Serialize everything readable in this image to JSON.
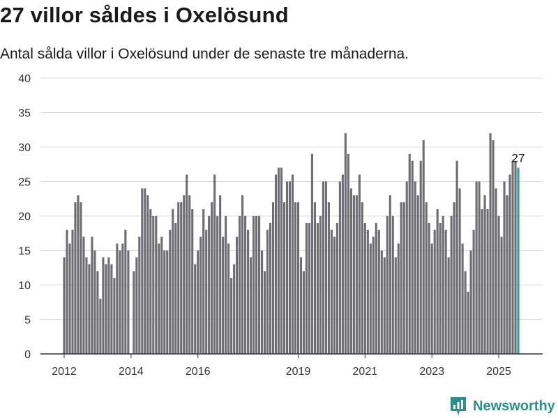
{
  "header": {
    "title": "27 villor såldes i Oxelösund",
    "subtitle": "Antal sålda villor i Oxelösund under de senaste tre månaderna."
  },
  "brand": {
    "name": "Newsworthy"
  },
  "colors": {
    "bar": "#6d6d72",
    "highlight": "#2a9d95",
    "grid": "#dddddd",
    "axis": "#333333",
    "brand": "#2e8f8c"
  },
  "chart_data": {
    "type": "bar",
    "title": "27 villor såldes i Oxelösund",
    "subtitle": "Antal sålda villor i Oxelösund under de senaste tre månaderna.",
    "xlabel": "",
    "ylabel": "",
    "ylim": [
      0,
      40
    ],
    "yticks": [
      0,
      5,
      10,
      15,
      20,
      25,
      30,
      35,
      40
    ],
    "xticks": [
      {
        "label": "2012",
        "index": 0
      },
      {
        "label": "2014",
        "index": 24
      },
      {
        "label": "2016",
        "index": 48
      },
      {
        "label": "2019",
        "index": 84
      },
      {
        "label": "2021",
        "index": 108
      },
      {
        "label": "2023",
        "index": 132
      },
      {
        "label": "2025",
        "index": 156
      }
    ],
    "grid": true,
    "highlight_label": "27",
    "highlight_last": true,
    "values": [
      14,
      18,
      16,
      18,
      22,
      23,
      22,
      17,
      14,
      13,
      17,
      15,
      12,
      8,
      14,
      13,
      14,
      13,
      11,
      16,
      15,
      16,
      18,
      15,
      0,
      12,
      14,
      17,
      24,
      24,
      23,
      21,
      20,
      20,
      16,
      17,
      15,
      15,
      18,
      21,
      19,
      22,
      22,
      23,
      26,
      23,
      21,
      13,
      15,
      17,
      21,
      18,
      20,
      22,
      26,
      20,
      23,
      17,
      20,
      16,
      11,
      13,
      17,
      20,
      23,
      20,
      18,
      14,
      20,
      20,
      20,
      15,
      12,
      18,
      19,
      22,
      26,
      27,
      27,
      22,
      25,
      25,
      26,
      22,
      22,
      14,
      12,
      19,
      19,
      29,
      22,
      19,
      20,
      25,
      25,
      22,
      18,
      17,
      19,
      25,
      26,
      32,
      29,
      24,
      23,
      23,
      26,
      22,
      19,
      18,
      16,
      17,
      19,
      18,
      15,
      14,
      20,
      23,
      20,
      14,
      16,
      22,
      22,
      25,
      29,
      28,
      25,
      23,
      28,
      31,
      22,
      19,
      16,
      18,
      21,
      19,
      20,
      18,
      14,
      20,
      22,
      28,
      24,
      16,
      12,
      9,
      15,
      18,
      25,
      25,
      21,
      23,
      21,
      32,
      31,
      24,
      20,
      17,
      25,
      23,
      26,
      28,
      28,
      27
    ]
  }
}
